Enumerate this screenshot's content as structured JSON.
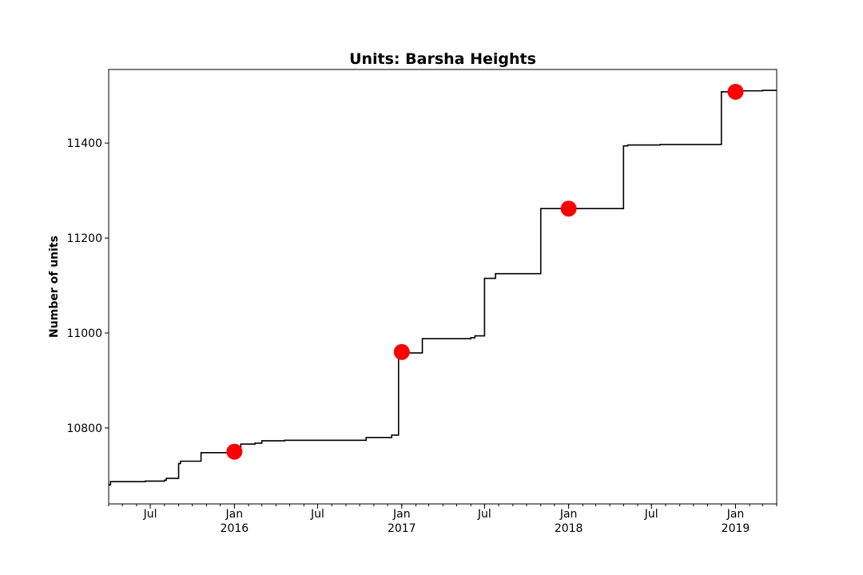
{
  "chart_data": {
    "type": "line",
    "title": "Units: Barsha Heights",
    "xlabel": "",
    "ylabel": "Number of units",
    "xlim": [
      "2015-04-01",
      "2019-04-01"
    ],
    "ylim": [
      10640,
      11555
    ],
    "grid": false,
    "y_ticks": [
      10800,
      11000,
      11200,
      11400
    ],
    "x_ticks": [
      {
        "date": "2015-07-01",
        "label": "Jul",
        "sublabel": ""
      },
      {
        "date": "2016-01-01",
        "label": "Jan",
        "sublabel": "2016"
      },
      {
        "date": "2016-07-01",
        "label": "Jul",
        "sublabel": ""
      },
      {
        "date": "2017-01-01",
        "label": "Jan",
        "sublabel": "2017"
      },
      {
        "date": "2017-07-01",
        "label": "Jul",
        "sublabel": ""
      },
      {
        "date": "2018-01-01",
        "label": "Jan",
        "sublabel": "2018"
      },
      {
        "date": "2018-07-01",
        "label": "Jul",
        "sublabel": ""
      },
      {
        "date": "2019-01-01",
        "label": "Jan",
        "sublabel": "2019"
      }
    ],
    "series": [
      {
        "style": "step",
        "color": "#000000",
        "points": [
          {
            "x": "2015-04-01",
            "y": 10680
          },
          {
            "x": "2015-04-05",
            "y": 10687
          },
          {
            "x": "2015-06-20",
            "y": 10688
          },
          {
            "x": "2015-08-01",
            "y": 10690
          },
          {
            "x": "2015-08-05",
            "y": 10694
          },
          {
            "x": "2015-09-01",
            "y": 10725
          },
          {
            "x": "2015-09-05",
            "y": 10730
          },
          {
            "x": "2015-10-20",
            "y": 10748
          },
          {
            "x": "2016-01-15",
            "y": 10766
          },
          {
            "x": "2016-02-15",
            "y": 10768
          },
          {
            "x": "2016-03-01",
            "y": 10773
          },
          {
            "x": "2016-04-20",
            "y": 10774
          },
          {
            "x": "2016-10-15",
            "y": 10780
          },
          {
            "x": "2016-12-10",
            "y": 10785
          },
          {
            "x": "2016-12-25",
            "y": 10958
          },
          {
            "x": "2017-02-15",
            "y": 10988
          },
          {
            "x": "2017-06-01",
            "y": 10990
          },
          {
            "x": "2017-06-10",
            "y": 10994
          },
          {
            "x": "2017-07-01",
            "y": 11115
          },
          {
            "x": "2017-07-25",
            "y": 11125
          },
          {
            "x": "2017-11-01",
            "y": 11262
          },
          {
            "x": "2018-05-01",
            "y": 11394
          },
          {
            "x": "2018-05-10",
            "y": 11396
          },
          {
            "x": "2018-07-20",
            "y": 11397
          },
          {
            "x": "2018-12-01",
            "y": 11508
          },
          {
            "x": "2018-12-20",
            "y": 11510
          },
          {
            "x": "2019-03-01",
            "y": 11511
          },
          {
            "x": "2019-04-01",
            "y": 11511
          }
        ]
      }
    ],
    "markers": {
      "color": "#ff0000",
      "points": [
        {
          "x": "2016-01-01",
          "y": 10750
        },
        {
          "x": "2017-01-01",
          "y": 10960
        },
        {
          "x": "2018-01-01",
          "y": 11262
        },
        {
          "x": "2019-01-01",
          "y": 11508
        }
      ]
    }
  }
}
